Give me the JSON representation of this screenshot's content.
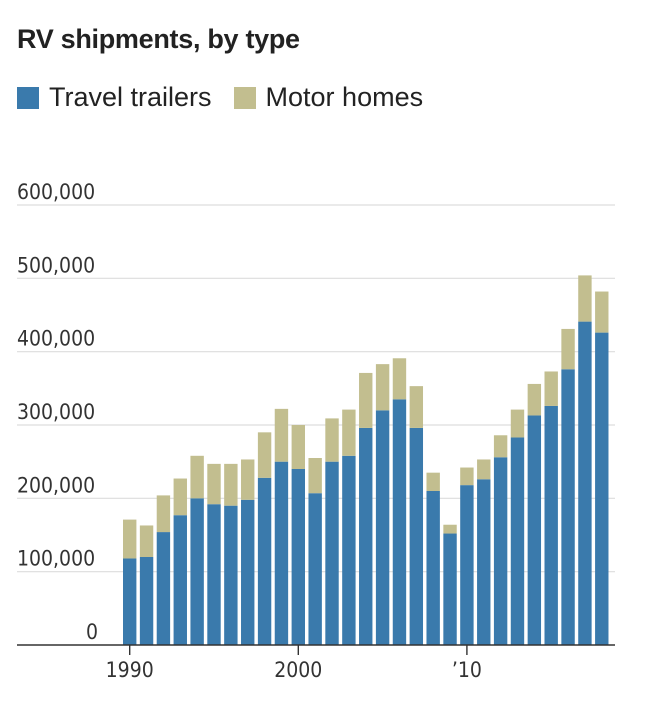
{
  "chart_data": {
    "type": "bar",
    "stacked": true,
    "title": "RV shipments, by type",
    "legend_position": "top-left",
    "colors": {
      "travel_trailers": "#3a7aac",
      "motor_homes": "#c2be8f",
      "grid": "#dddddd",
      "axis": "#333333"
    },
    "ylim": [
      0,
      600000
    ],
    "y_ticks": [
      0,
      100000,
      200000,
      300000,
      400000,
      500000,
      600000
    ],
    "y_tick_labels": [
      "0",
      "100,000",
      "200,000",
      "300,000",
      "400,000",
      "500,000",
      "600,000"
    ],
    "x": [
      1990,
      1991,
      1992,
      1993,
      1994,
      1995,
      1996,
      1997,
      1998,
      1999,
      2000,
      2001,
      2002,
      2003,
      2004,
      2005,
      2006,
      2007,
      2008,
      2009,
      2010,
      2011,
      2012,
      2013,
      2014,
      2015,
      2016,
      2017,
      2018
    ],
    "x_tick_labels": [
      {
        "year": 1990,
        "label": "1990"
      },
      {
        "year": 2000,
        "label": "2000"
      },
      {
        "year": 2010,
        "label": "’10"
      }
    ],
    "series": [
      {
        "name": "Travel trailers",
        "color_key": "travel_trailers",
        "values": [
          118000,
          120000,
          154000,
          177000,
          200000,
          192000,
          190000,
          198000,
          228000,
          250000,
          240000,
          207000,
          250000,
          258000,
          296000,
          320000,
          335000,
          296000,
          210000,
          152000,
          218000,
          226000,
          256000,
          283000,
          313000,
          326000,
          376000,
          441000,
          426000
        ]
      },
      {
        "name": "Motor homes",
        "color_key": "motor_homes",
        "values": [
          53000,
          43000,
          50000,
          50000,
          58000,
          55000,
          57000,
          55000,
          62000,
          72000,
          60000,
          48000,
          59000,
          63000,
          75000,
          63000,
          56000,
          57000,
          25000,
          12000,
          24000,
          27000,
          30000,
          38000,
          43000,
          47000,
          55000,
          63000,
          56000
        ]
      }
    ]
  }
}
